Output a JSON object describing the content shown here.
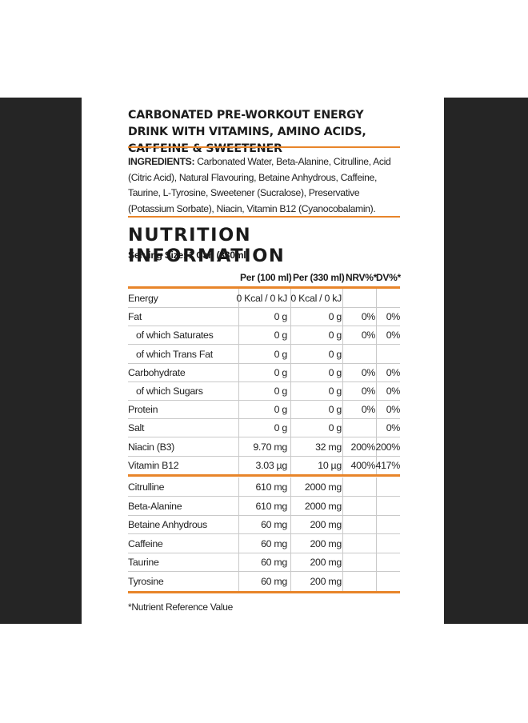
{
  "headline": "CARBONATED PRE-WORKOUT ENERGY DRINK WITH VITAMINS, AMINO ACIDS, CAFFEINE & SWEETENER",
  "ingredients": {
    "label": "INGREDIENTS:",
    "text": "Carbonated Water, Beta-Alanine, Citrulline, Acid (Citric Acid), Natural Flavouring, Betaine Anhydrous, Caffeine, Taurine, L-Tyrosine, Sweetener (Sucralose), Preservative (Potassium Sorbate), Niacin, Vitamin B12 (Cyanocobalamin)."
  },
  "nutrition": {
    "title": "NUTRITION INFORMATION",
    "serving": "Serving Size: 1 Can (330ml)",
    "headers": {
      "per100": "Per (100 ml)",
      "per330": "Per (330 ml)",
      "nrv": "NRV%*",
      "dv": "DV%*"
    },
    "rows": [
      {
        "name": "Energy",
        "per100": "0 Kcal / 0 kJ",
        "per330": "0 Kcal / 0 kJ",
        "nrv": "",
        "dv": ""
      },
      {
        "name": "Fat",
        "per100": "0 g",
        "per330": "0 g",
        "nrv": "0%",
        "dv": "0%"
      },
      {
        "name": "of which Saturates",
        "per100": "0 g",
        "per330": "0 g",
        "nrv": "0%",
        "dv": "0%"
      },
      {
        "name": "of which Trans Fat",
        "per100": "0 g",
        "per330": "0 g",
        "nrv": "",
        "dv": ""
      },
      {
        "name": "Carbohydrate",
        "per100": "0 g",
        "per330": "0 g",
        "nrv": "0%",
        "dv": "0%"
      },
      {
        "name": "of which Sugars",
        "per100": "0 g",
        "per330": "0 g",
        "nrv": "0%",
        "dv": "0%"
      },
      {
        "name": "Protein",
        "per100": "0 g",
        "per330": "0 g",
        "nrv": "0%",
        "dv": "0%"
      },
      {
        "name": "Salt",
        "per100": "0 g",
        "per330": "0 g",
        "nrv": "",
        "dv": "0%"
      },
      {
        "name": "Niacin (B3)",
        "per100": "9.70 mg",
        "per330": "32 mg",
        "nrv": "200%",
        "dv": "200%"
      },
      {
        "name": "Vitamin B12",
        "per100": "3.03 µg",
        "per330": "10 µg",
        "nrv": "400%",
        "dv": "417%"
      }
    ],
    "actives": [
      {
        "name": "Citrulline",
        "per100": "610 mg",
        "per330": "2000 mg"
      },
      {
        "name": "Beta-Alanine",
        "per100": "610 mg",
        "per330": "2000 mg"
      },
      {
        "name": "Betaine Anhydrous",
        "per100": "60 mg",
        "per330": "200 mg"
      },
      {
        "name": "Caffeine",
        "per100": "60 mg",
        "per330": "200 mg"
      },
      {
        "name": "Taurine",
        "per100": "60 mg",
        "per330": "200 mg"
      },
      {
        "name": "Tyrosine",
        "per100": "60 mg",
        "per330": "200 mg"
      }
    ],
    "footnote": "*Nutrient Reference Value"
  },
  "colors": {
    "accent": "#e8852a",
    "band": "#252525"
  }
}
